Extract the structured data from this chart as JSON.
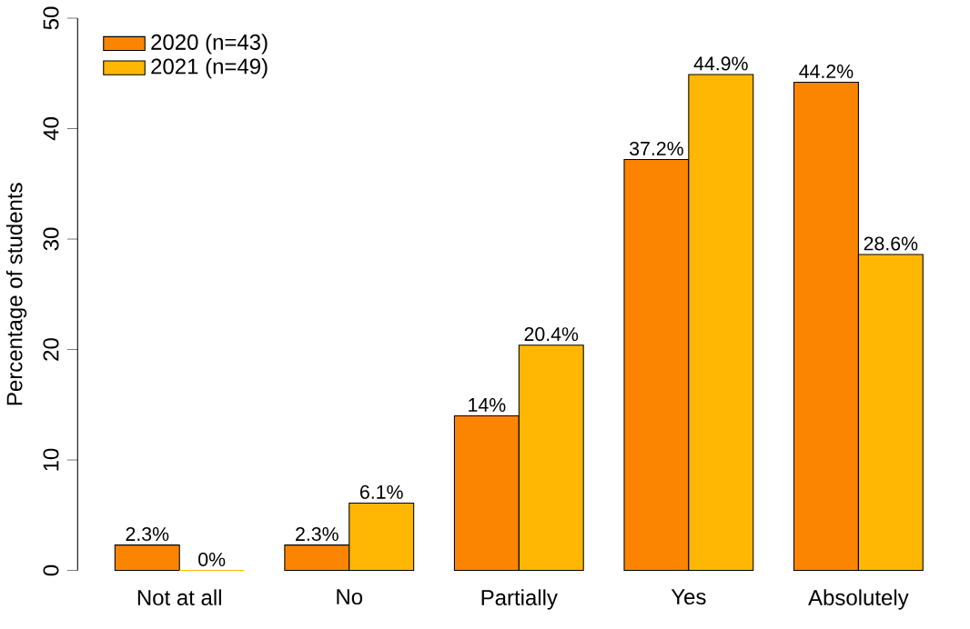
{
  "chart_data": {
    "type": "bar",
    "ylabel": "Percentage of students",
    "categories": [
      "Not at all",
      "No",
      "Partially",
      "Yes",
      "Absolutely"
    ],
    "series": [
      {
        "name": "2020 (n=43)",
        "color": "#fb8500",
        "values": [
          2.3,
          2.3,
          14,
          37.2,
          44.2
        ],
        "value_labels": [
          "2.3%",
          "2.3%",
          "14%",
          "37.2%",
          "44.2%"
        ]
      },
      {
        "name": "2021 (n=49)",
        "color": "#ffb703",
        "values": [
          0,
          6.1,
          20.4,
          44.9,
          28.6
        ],
        "value_labels": [
          "0%",
          "6.1%",
          "20.4%",
          "44.9%",
          "28.6%"
        ]
      }
    ],
    "ylim": [
      0,
      50
    ],
    "yticks": [
      0,
      10,
      20,
      30,
      40,
      50
    ],
    "legend": "top left",
    "grid": false
  }
}
